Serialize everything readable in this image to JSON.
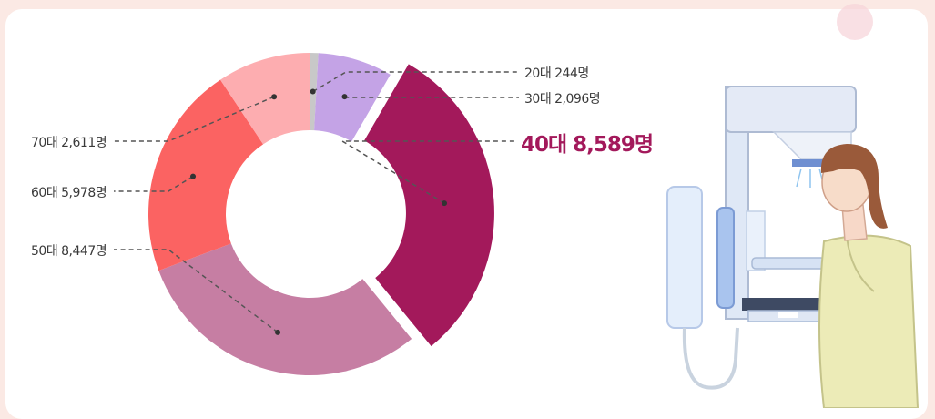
{
  "chart_data": {
    "type": "pie",
    "variant": "donut",
    "categories": [
      "20대",
      "30대",
      "40대",
      "50대",
      "60대",
      "70대"
    ],
    "labels": [
      "20대 244명",
      "30대 2,096명",
      "40대 8,589명",
      "50대 8,447명",
      "60대 5,978명",
      "70대 2,611명"
    ],
    "values": [
      244,
      2096,
      8589,
      8447,
      5978,
      2611
    ],
    "unit": "명",
    "highlighted": "40대",
    "colors": [
      "#c8c8c8",
      "#c4a3e6",
      "#a3195b",
      "#c67ea3",
      "#fb6362",
      "#fdadb0"
    ]
  },
  "colors": {
    "accent": "#a3195b",
    "background": "#fbe9e4",
    "card": "#ffffff"
  }
}
